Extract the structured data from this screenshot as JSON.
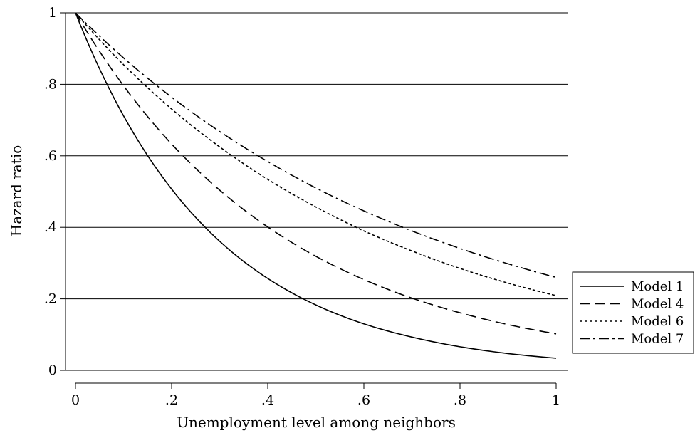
{
  "chart_data": {
    "type": "line",
    "title": "",
    "xlabel": "Unemployment level among neighbors",
    "ylabel": "Hazard ratio",
    "xlim": [
      0,
      1
    ],
    "ylim": [
      0,
      1
    ],
    "xticks": [
      0,
      0.2,
      0.4,
      0.6,
      0.8,
      1
    ],
    "xtick_labels": [
      "0",
      ".2",
      ".4",
      ".6",
      ".8",
      "1"
    ],
    "yticks": [
      0,
      0.2,
      0.4,
      0.6,
      0.8,
      1
    ],
    "ytick_labels": [
      "0",
      ".2",
      ".4",
      ".6",
      ".8",
      "1"
    ],
    "grid": "horizontal",
    "legend_position": "right",
    "x": [
      0,
      0.1,
      0.2,
      0.3,
      0.4,
      0.5,
      0.6,
      0.7,
      0.8,
      0.9,
      1.0
    ],
    "series": [
      {
        "name": "Model 1",
        "style": "solid",
        "values": [
          1.0,
          0.712,
          0.507,
          0.361,
          0.257,
          0.183,
          0.13,
          0.093,
          0.066,
          0.047,
          0.034
        ]
      },
      {
        "name": "Model 4",
        "style": "dashed",
        "values": [
          1.0,
          0.796,
          0.633,
          0.504,
          0.401,
          0.319,
          0.254,
          0.202,
          0.161,
          0.128,
          0.102
        ]
      },
      {
        "name": "Model 6",
        "style": "dotted",
        "values": [
          1.0,
          0.855,
          0.731,
          0.625,
          0.534,
          0.457,
          0.39,
          0.334,
          0.285,
          0.244,
          0.209
        ]
      },
      {
        "name": "Model 7",
        "style": "dash-dot",
        "values": [
          1.0,
          0.874,
          0.764,
          0.668,
          0.584,
          0.51,
          0.446,
          0.39,
          0.341,
          0.298,
          0.26
        ]
      }
    ]
  }
}
